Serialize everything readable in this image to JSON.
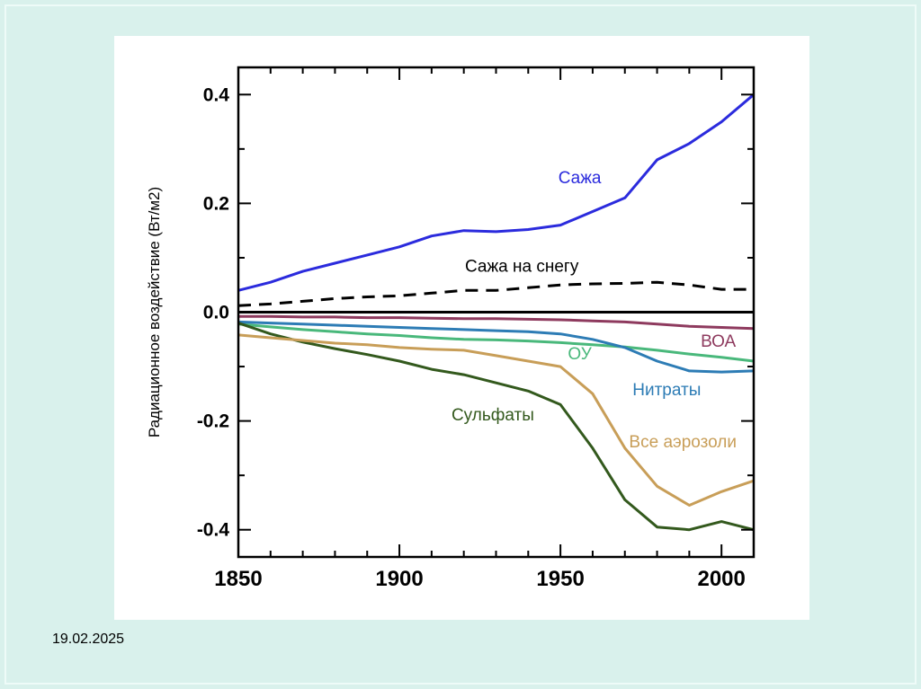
{
  "slide": {
    "date": "19.02.2025"
  },
  "chart_data": {
    "type": "line",
    "title": "",
    "xlabel": "",
    "ylabel": "Радиационное воздействие (Вт/м2)",
    "xlim": [
      1850,
      2010
    ],
    "ylim": [
      -0.45,
      0.45
    ],
    "xticks": [
      1850,
      1900,
      1950,
      2000
    ],
    "xtick_labels": [
      "1850",
      "1900",
      "1950",
      "2000"
    ],
    "yticks": [
      -0.4,
      -0.2,
      0,
      0.2,
      0.4
    ],
    "ytick_labels": [
      "-0.4",
      "-0.2",
      "0.0",
      "0.2",
      "0.4"
    ],
    "grid": false,
    "legend": "inline-labels",
    "x": [
      1850,
      1860,
      1870,
      1880,
      1890,
      1900,
      1910,
      1920,
      1930,
      1940,
      1950,
      1960,
      1970,
      1980,
      1990,
      2000,
      2010
    ],
    "series": [
      {
        "name": "Сажа",
        "color": "#2b2bdd",
        "dash": null,
        "label_pos": [
          1956,
          0.247
        ],
        "values": [
          0.04,
          0.055,
          0.075,
          0.09,
          0.105,
          0.12,
          0.14,
          0.15,
          0.148,
          0.152,
          0.16,
          0.185,
          0.21,
          0.28,
          0.31,
          0.35,
          0.4
        ]
      },
      {
        "name": "Сажа на снегу",
        "color": "#000000",
        "dash": "14 9",
        "label_pos": [
          1938,
          0.084
        ],
        "values": [
          0.012,
          0.015,
          0.02,
          0.025,
          0.028,
          0.03,
          0.035,
          0.04,
          0.04,
          0.045,
          0.05,
          0.052,
          0.053,
          0.055,
          0.05,
          0.042,
          0.042
        ]
      },
      {
        "name": "ВОА",
        "color": "#8e3a5e",
        "dash": null,
        "label_pos": [
          1999,
          -0.054
        ],
        "values": [
          -0.008,
          -0.008,
          -0.009,
          -0.009,
          -0.01,
          -0.01,
          -0.011,
          -0.012,
          -0.012,
          -0.013,
          -0.014,
          -0.016,
          -0.018,
          -0.022,
          -0.026,
          -0.028,
          -0.03
        ]
      },
      {
        "name": "ОУ",
        "color": "#49b87b",
        "dash": null,
        "label_pos": [
          1956,
          -0.077
        ],
        "values": [
          -0.022,
          -0.027,
          -0.032,
          -0.036,
          -0.04,
          -0.043,
          -0.047,
          -0.05,
          -0.051,
          -0.053,
          -0.056,
          -0.06,
          -0.064,
          -0.07,
          -0.077,
          -0.083,
          -0.09
        ]
      },
      {
        "name": "Нитраты",
        "color": "#2d7cb5",
        "dash": null,
        "label_pos": [
          1983,
          -0.143
        ],
        "values": [
          -0.018,
          -0.02,
          -0.022,
          -0.024,
          -0.026,
          -0.028,
          -0.03,
          -0.032,
          -0.034,
          -0.036,
          -0.04,
          -0.05,
          -0.065,
          -0.09,
          -0.108,
          -0.11,
          -0.108
        ]
      },
      {
        "name": "Сульфаты",
        "color": "#33591d",
        "dash": null,
        "label_pos": [
          1929,
          -0.189
        ],
        "values": [
          -0.02,
          -0.04,
          -0.055,
          -0.067,
          -0.078,
          -0.09,
          -0.105,
          -0.115,
          -0.13,
          -0.145,
          -0.17,
          -0.25,
          -0.345,
          -0.395,
          -0.4,
          -0.385,
          -0.4
        ]
      },
      {
        "name": "Все аэрозоли",
        "color": "#c89e58",
        "dash": null,
        "label_pos": [
          1988,
          -0.239
        ],
        "values": [
          -0.042,
          -0.047,
          -0.052,
          -0.057,
          -0.06,
          -0.065,
          -0.068,
          -0.07,
          -0.08,
          -0.09,
          -0.1,
          -0.15,
          -0.25,
          -0.32,
          -0.355,
          -0.33,
          -0.31
        ]
      }
    ]
  }
}
